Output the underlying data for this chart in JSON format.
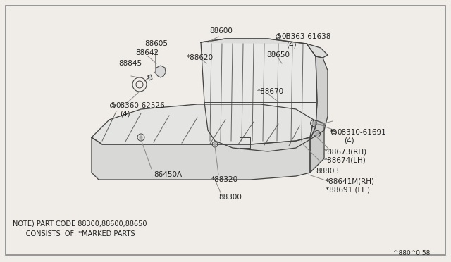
{
  "background_color": "#f0ede8",
  "line_color": "#444444",
  "text_color": "#222222",
  "part_number_label": "^880^0 58",
  "note_line1": "NOTE) PART CODE 88300,88600,88650",
  "note_line2": "      CONSISTS  OF  *MARKED PARTS",
  "figsize": [
    6.4,
    3.72
  ],
  "dpi": 100
}
